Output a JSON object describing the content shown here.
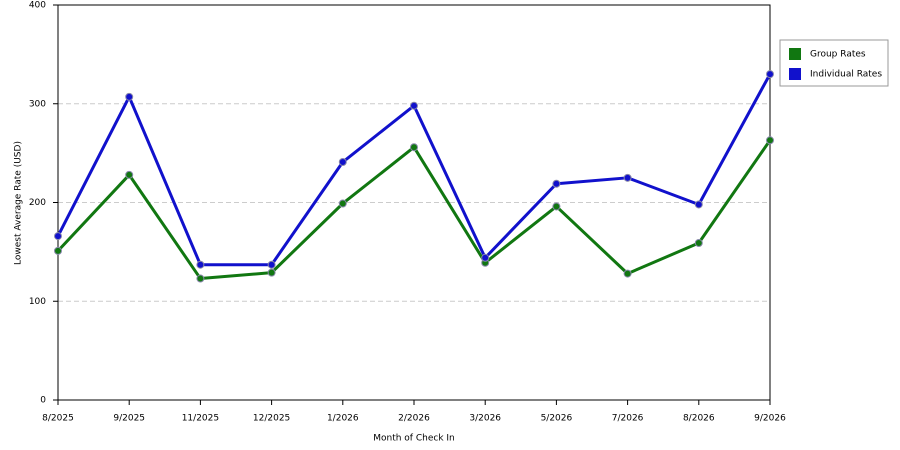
{
  "chart_data": {
    "type": "line",
    "x_label": "Month of Check In",
    "y_label": "Lowest Average Rate (USD)",
    "categories": [
      "8/2025",
      "9/2025",
      "11/2025",
      "12/2025",
      "1/2026",
      "2/2026",
      "3/2026",
      "5/2026",
      "7/2026",
      "8/2026",
      "9/2026"
    ],
    "series": [
      {
        "name": "Group Rates",
        "color": "#117711",
        "values": [
          151,
          228,
          123,
          129,
          199,
          256,
          139,
          196,
          128,
          159,
          263
        ]
      },
      {
        "name": "Individual Rates",
        "color": "#1111cc",
        "values": [
          166,
          307,
          137,
          137,
          241,
          298,
          144,
          219,
          225,
          198,
          330
        ]
      }
    ],
    "ylim": [
      0,
      400
    ],
    "yticks": [
      0,
      100,
      200,
      300,
      400
    ],
    "grid": true,
    "legend": "right"
  }
}
